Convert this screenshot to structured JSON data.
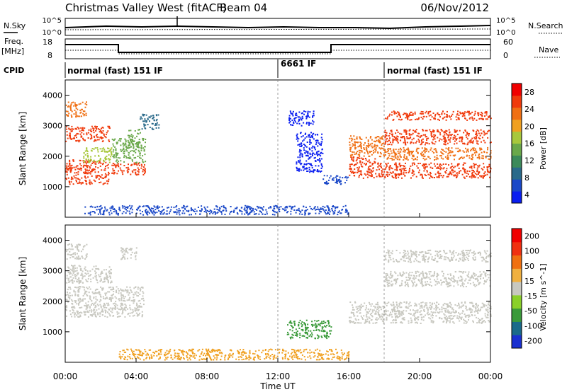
{
  "header": {
    "title": "Christmas Valley West (fitACF)",
    "beam": "Beam 04",
    "date": "06/Nov/2012"
  },
  "noise_panel": {
    "left_label": "N.Sky",
    "right_label": "N.Search",
    "left_ticks": [
      "10^5",
      "10^0"
    ],
    "right_ticks": [
      "10^5",
      "10^0"
    ]
  },
  "freq_panel": {
    "left_label_1": "Freq.",
    "left_label_2": "[MHz]",
    "right_label": "Nave",
    "left_ticks": [
      "18",
      "8"
    ],
    "right_ticks": [
      "60",
      "0"
    ]
  },
  "cpid_panel": {
    "label": "CPID",
    "segments": [
      {
        "text": "normal (fast) 151 IF",
        "start": 0
      },
      {
        "text": "6661 IF",
        "start": 12
      },
      {
        "text": "normal (fast) 151 IF",
        "start": 18
      }
    ]
  },
  "chart_data": [
    {
      "type": "heatmap",
      "panel": "power",
      "ylabel": "Slant Range [km]",
      "xlabel": "",
      "x_range_hours": [
        0,
        24
      ],
      "ylim": [
        0,
        4500
      ],
      "yticks": [
        "1000",
        "2000",
        "3000",
        "4000"
      ],
      "colorbar_label": "Power [dB]",
      "colorbar_ticks": [
        "28",
        "24",
        "20",
        "16",
        "12",
        "8",
        "4"
      ],
      "colorscale": [
        "#0a1ef0",
        "#1a48c8",
        "#2a6a8a",
        "#3c8a5a",
        "#6aa84a",
        "#a8c83c",
        "#f0a020",
        "#f07014",
        "#f03a0c",
        "#f00000"
      ],
      "regions": [
        {
          "x": [
            0,
            2.5
          ],
          "y": [
            1100,
            1900
          ],
          "level": 0.95
        },
        {
          "x": [
            0,
            2.5
          ],
          "y": [
            2500,
            3000
          ],
          "level": 0.9
        },
        {
          "x": [
            0,
            1.2
          ],
          "y": [
            3300,
            3800
          ],
          "level": 0.85
        },
        {
          "x": [
            1.0,
            2.6
          ],
          "y": [
            1800,
            2300
          ],
          "level": 0.6
        },
        {
          "x": [
            2.6,
            4.5
          ],
          "y": [
            1400,
            1800
          ],
          "level": 0.9
        },
        {
          "x": [
            2.6,
            4.5
          ],
          "y": [
            1800,
            2600
          ],
          "level": 0.55
        },
        {
          "x": [
            3.5,
            4.2
          ],
          "y": [
            2400,
            2900
          ],
          "level": 0.5
        },
        {
          "x": [
            4.2,
            5.3
          ],
          "y": [
            2900,
            3400
          ],
          "level": 0.3
        },
        {
          "x": [
            12.6,
            14.0
          ],
          "y": [
            3000,
            3500
          ],
          "level": 0.08
        },
        {
          "x": [
            13.0,
            14.5
          ],
          "y": [
            1500,
            2800
          ],
          "level": 0.1
        },
        {
          "x": [
            14.5,
            16.0
          ],
          "y": [
            1100,
            1400
          ],
          "level": 0.15
        },
        {
          "x": [
            16.0,
            17.5
          ],
          "y": [
            1300,
            2000
          ],
          "level": 0.95
        },
        {
          "x": [
            16.0,
            18.0
          ],
          "y": [
            2000,
            2700
          ],
          "level": 0.8
        },
        {
          "x": [
            17.5,
            24
          ],
          "y": [
            1300,
            1800
          ],
          "level": 0.95
        },
        {
          "x": [
            18,
            24
          ],
          "y": [
            2400,
            2900
          ],
          "level": 0.95
        },
        {
          "x": [
            18,
            24
          ],
          "y": [
            3200,
            3500
          ],
          "level": 0.9
        },
        {
          "x": [
            18,
            24
          ],
          "y": [
            1900,
            2300
          ],
          "level": 0.85
        },
        {
          "x": [
            1.0,
            16.0
          ],
          "y": [
            100,
            400
          ],
          "level": 0.2
        }
      ]
    },
    {
      "type": "heatmap",
      "panel": "velocity",
      "ylabel": "Slant Range [km]",
      "xlabel": "Time UT",
      "x_range_hours": [
        0,
        24
      ],
      "ylim": [
        0,
        4500
      ],
      "yticks": [
        "1000",
        "2000",
        "3000",
        "4000"
      ],
      "xticks": [
        "00:00",
        "04:00",
        "08:00",
        "12:00",
        "16:00",
        "20:00",
        "00:00"
      ],
      "colorbar_label": "Velocity [m s^-1]",
      "colorbar_ticks": [
        "200",
        "100",
        "50",
        "15",
        "-15",
        "-50",
        "-100",
        "-200"
      ],
      "colorscale": [
        "#1a30d0",
        "#1a6a8a",
        "#3a9a3a",
        "#8ad02a",
        "#c8c8c0",
        "#f0b040",
        "#f07010",
        "#f03010",
        "#f00000"
      ],
      "regions": [
        {
          "x": [
            0,
            2.6
          ],
          "y": [
            1500,
            2500
          ],
          "color": "#c8c8c0"
        },
        {
          "x": [
            0,
            2.6
          ],
          "y": [
            2600,
            3200
          ],
          "color": "#c8c8c0"
        },
        {
          "x": [
            0,
            1.2
          ],
          "y": [
            3400,
            3900
          ],
          "color": "#c8c8c0"
        },
        {
          "x": [
            2.6,
            4.4
          ],
          "y": [
            1500,
            2500
          ],
          "color": "#c8c8c0"
        },
        {
          "x": [
            3.0,
            4.0
          ],
          "y": [
            3400,
            3800
          ],
          "color": "#c8c8c0"
        },
        {
          "x": [
            16.0,
            24
          ],
          "y": [
            1300,
            2000
          ],
          "color": "#c8c8c0"
        },
        {
          "x": [
            18,
            24
          ],
          "y": [
            2500,
            3000
          ],
          "color": "#c8c8c0"
        },
        {
          "x": [
            18,
            24
          ],
          "y": [
            3300,
            3700
          ],
          "color": "#c8c8c0"
        },
        {
          "x": [
            3.0,
            16.0
          ],
          "y": [
            100,
            450
          ],
          "color": "#f0a020"
        },
        {
          "x": [
            12.5,
            15.0
          ],
          "y": [
            800,
            1400
          ],
          "color": "#3a9a3a"
        }
      ]
    }
  ]
}
